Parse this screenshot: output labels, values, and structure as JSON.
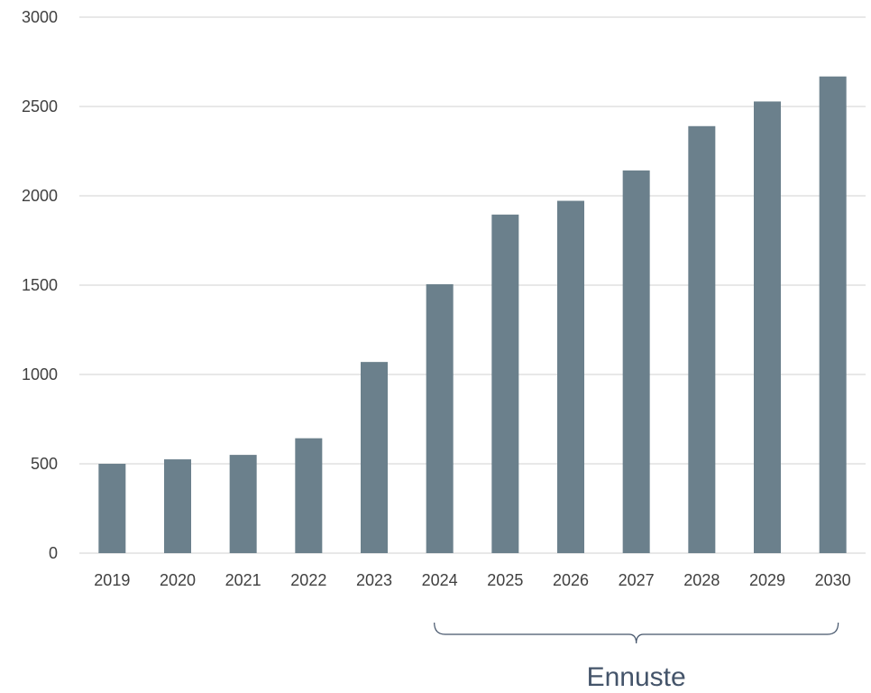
{
  "chart_data": {
    "type": "bar",
    "title": "",
    "xlabel": "",
    "ylabel": "",
    "categories": [
      "2019",
      "2020",
      "2021",
      "2022",
      "2023",
      "2024",
      "2025",
      "2026",
      "2027",
      "2028",
      "2029",
      "2030"
    ],
    "values": [
      500,
      525,
      550,
      643,
      1070,
      1505,
      1895,
      1972,
      2142,
      2390,
      2528,
      2668
    ],
    "ylim": [
      0,
      3000
    ],
    "yticks": [
      "0",
      "500",
      "1000",
      "1500",
      "2000",
      "2500",
      "3000"
    ],
    "grid": true,
    "colors": {
      "bar": "#6b808c",
      "grid": "#d9d9d9",
      "annotation": "#44546a"
    },
    "annotation": {
      "text": "Ennuste",
      "from_category": "2024",
      "to_category": "2030"
    }
  }
}
